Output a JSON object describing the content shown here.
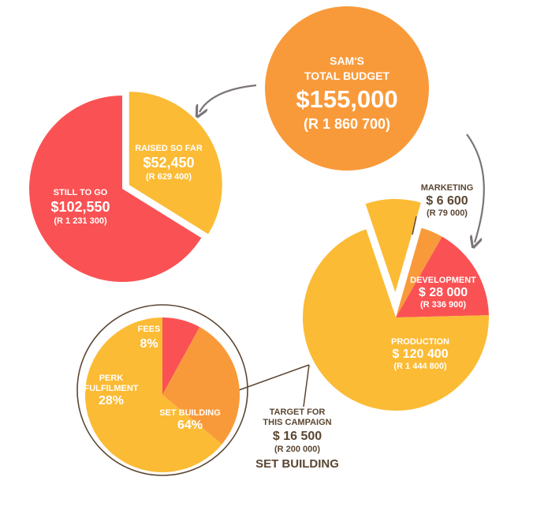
{
  "colors": {
    "orange": "#f99a3a",
    "red": "#fa5254",
    "yellow": "#fbbb35",
    "arrow": "#7a7478",
    "text_dark": "#5b4632",
    "text_white": "#ffffff"
  },
  "total": {
    "line1": "SAM'S",
    "line2": "TOTAL BUDGET",
    "usd": "$155,000",
    "zar": "(R 1 860 700)"
  },
  "chart_data": [
    {
      "type": "pie",
      "name": "raised",
      "slices": [
        {
          "label": "RAISED SO FAR",
          "usd": "$52,450",
          "zar": "(R 629 400)",
          "value": 52450,
          "color": "#fbbb35",
          "exploded": true
        },
        {
          "label": "STILL TO GO",
          "usd": "$102,550",
          "zar": "(R 1 231 300)",
          "value": 102550,
          "color": "#fa5254",
          "exploded": false
        }
      ]
    },
    {
      "type": "pie",
      "name": "budget-breakdown",
      "slices": [
        {
          "label": "MARKETING",
          "usd": "$ 6 600",
          "zar": "(R 79 000)",
          "value": 6600,
          "color": "#f99a3a"
        },
        {
          "label": "DEVELOPMENT",
          "usd": "$ 28 000",
          "zar": "(R 336 900)",
          "value": 28000,
          "color": "#fa5254"
        },
        {
          "label": "PRODUCTION",
          "usd": "$ 120 400",
          "zar": "(R 1 444 800)",
          "value": 120400,
          "color": "#fbbb35"
        }
      ],
      "target": {
        "line1": "TARGET FOR",
        "line2": "THIS CAMPAIGN",
        "usd": "$ 16 500",
        "zar": "(R 200 000)",
        "caption": "SET BUILDING",
        "value": 16500,
        "color": "#fbbb35"
      }
    },
    {
      "type": "pie",
      "name": "set-building-breakdown",
      "slices": [
        {
          "label": "FEES",
          "pct": "8%",
          "value": 8,
          "color": "#fa5254"
        },
        {
          "label_lines": [
            "PERK",
            "FULFILMENT"
          ],
          "pct": "28%",
          "value": 28,
          "color": "#f99a3a"
        },
        {
          "label": "SET BUILDING",
          "pct": "64%",
          "value": 64,
          "color": "#fbbb35"
        }
      ]
    }
  ]
}
